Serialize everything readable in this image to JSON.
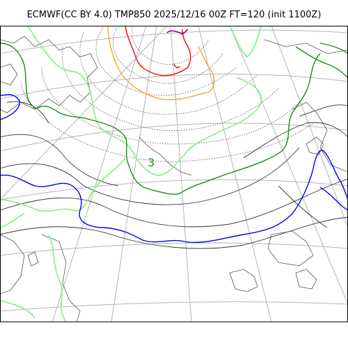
{
  "title": "ECMWF(CC BY 4.0) TMP850 2025/12/16 00Z FT=120 (init 1100Z)",
  "map": {
    "contour_label": "3",
    "colors": {
      "graticule": "#b3b3b3",
      "coastline": "#555555",
      "isotherm_thin": "#333333",
      "isotherm_3c": "#1a8a1a",
      "isotherm_0c": "#0000ee",
      "isotherm_minus6": "#90ee90",
      "isotherm_orange": "#f5a623",
      "isotherm_red": "#ff0000",
      "isotherm_purple": "#8b008b"
    }
  }
}
